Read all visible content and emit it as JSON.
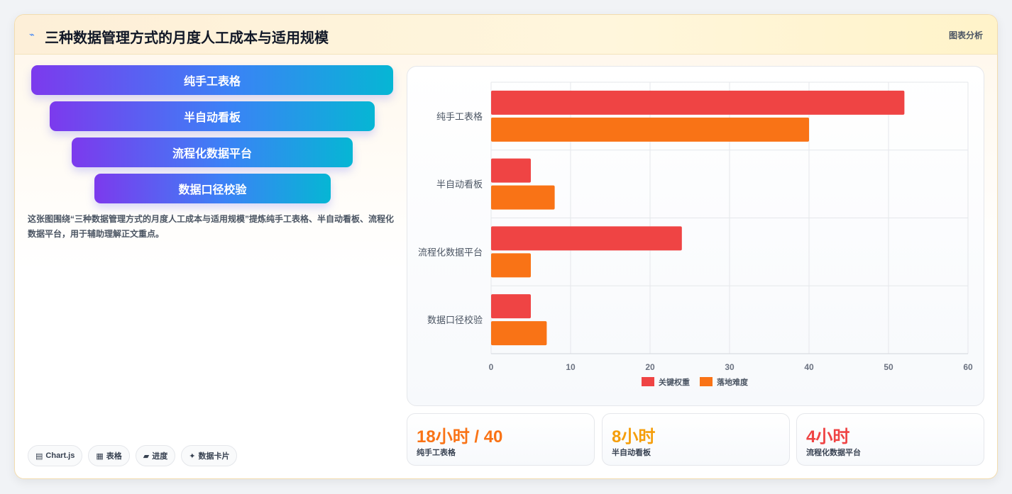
{
  "header": {
    "icon": "trend-line-icon",
    "title": "三种数据管理方式的月度人工成本与适用规模",
    "link_label": "图表分析"
  },
  "funnel": {
    "items": [
      {
        "label": "纯手工表格"
      },
      {
        "label": "半自动看板"
      },
      {
        "label": "流程化数据平台"
      },
      {
        "label": "数据口径校验"
      }
    ],
    "gradient": [
      "#7c3aed",
      "#3b82f6",
      "#06b6d4"
    ]
  },
  "description": "这张图围绕“三种数据管理方式的月度人工成本与适用规模”提炼纯手工表格、半自动看板、流程化数据平台，用于辅助理解正文重点。",
  "tags": [
    {
      "icon": "chart-icon",
      "glyph": "▤",
      "label": "Chart.js"
    },
    {
      "icon": "table-icon",
      "glyph": "▦",
      "label": "表格"
    },
    {
      "icon": "progress-icon",
      "glyph": "▰",
      "label": "进度"
    },
    {
      "icon": "sparkle-icon",
      "glyph": "✦",
      "label": "数据卡片"
    }
  ],
  "chart_data": {
    "type": "bar",
    "orientation": "horizontal",
    "categories": [
      "纯手工表格",
      "半自动看板",
      "流程化数据平台",
      "数据口径校验"
    ],
    "series": [
      {
        "name": "关键权重",
        "values": [
          52,
          5,
          24,
          5
        ],
        "color": "#ef4444"
      },
      {
        "name": "落地难度",
        "values": [
          40,
          8,
          5,
          7
        ],
        "color": "#f97316"
      }
    ],
    "xlim": [
      0,
      60
    ],
    "xticks": [
      0,
      10,
      20,
      30,
      40,
      50,
      60
    ],
    "grid": true,
    "legend": "bottom-center"
  },
  "stats": [
    {
      "value": "18小时 / 40",
      "label": "纯手工表格",
      "color": "#f97316"
    },
    {
      "value": "8小时",
      "label": "半自动看板",
      "color": "#f59e0b"
    },
    {
      "value": "4小时",
      "label": "流程化数据平台",
      "color": "#ef4444"
    }
  ]
}
